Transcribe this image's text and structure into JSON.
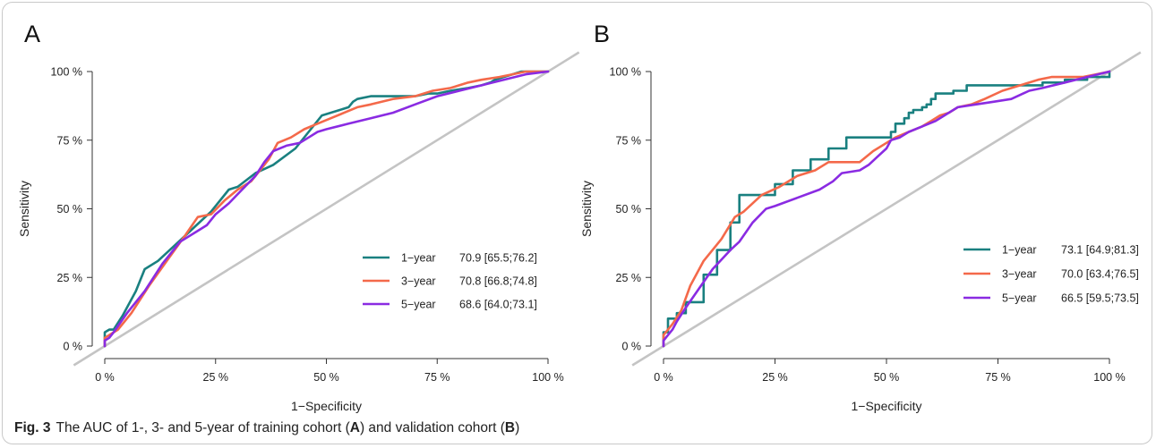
{
  "caption": {
    "label": "Fig. 3",
    "text_1": "The AUC of 1-, 3- and 5-year of training cohort (",
    "bold_a": "A",
    "text_2": ") and validation cohort (",
    "bold_b": "B",
    "text_3": ")"
  },
  "colors": {
    "1-year": "#1a8080",
    "3-year": "#f4694a",
    "5-year": "#8a2be2",
    "diagonal": "#c4c4c4"
  },
  "chart_data": [
    {
      "panel": "A",
      "type": "line",
      "xlabel": "1−Specificity",
      "ylabel": "Sensitivity",
      "xlim": [
        0,
        100
      ],
      "ylim": [
        0,
        100
      ],
      "xticks": [
        "0 %",
        "25 %",
        "50 %",
        "75 %",
        "100 %"
      ],
      "yticks": [
        "0 %",
        "25 %",
        "50 %",
        "75 %",
        "100 %"
      ],
      "legend_position": "bottom-right",
      "grid": false,
      "series": [
        {
          "name": "1−year",
          "key": "1-year",
          "auc": "70.9 [65.5;76.2]",
          "x": [
            0,
            0,
            1,
            2,
            4,
            7,
            9,
            12,
            16,
            20,
            24,
            28,
            30,
            34,
            38,
            43,
            46,
            49,
            53,
            55,
            56,
            57,
            60,
            64,
            68,
            70,
            73,
            75,
            78,
            82,
            85,
            87,
            88,
            90,
            92,
            94,
            96,
            100
          ],
          "y": [
            0,
            5,
            6,
            6,
            11,
            20,
            28,
            31,
            37,
            43,
            49,
            57,
            58,
            63,
            66,
            72,
            78,
            84,
            86,
            87,
            89,
            90,
            91,
            91,
            91,
            91,
            92,
            92,
            93,
            94,
            95,
            96,
            97,
            98,
            99,
            100,
            100,
            100
          ]
        },
        {
          "name": "3−year",
          "key": "3-year",
          "auc": "70.8 [66.8;74.8]",
          "x": [
            0,
            0,
            1,
            3,
            6,
            10,
            14,
            18,
            21,
            24,
            27,
            30,
            33,
            35,
            37,
            39,
            42,
            45,
            48,
            51,
            54,
            57,
            60,
            65,
            70,
            74,
            78,
            82,
            85,
            89,
            92,
            95,
            100
          ],
          "y": [
            0,
            3,
            4,
            6,
            12,
            22,
            31,
            40,
            47,
            48,
            53,
            57,
            60,
            64,
            68,
            74,
            76,
            79,
            81,
            83,
            85,
            87,
            88,
            90,
            91,
            93,
            94,
            96,
            97,
            98,
            99,
            100,
            100
          ]
        },
        {
          "name": "5−year",
          "key": "5-year",
          "auc": "68.6 [64.0;73.1]",
          "x": [
            0,
            0,
            1,
            2,
            5,
            9,
            13,
            17,
            21,
            23,
            25,
            28,
            31,
            34,
            36,
            38,
            41,
            44,
            46,
            48,
            50,
            55,
            60,
            65,
            70,
            75,
            80,
            85,
            90,
            95,
            100
          ],
          "y": [
            0,
            2,
            3,
            5,
            12,
            20,
            30,
            38,
            42,
            44,
            48,
            52,
            57,
            62,
            67,
            71,
            73,
            74,
            76,
            78,
            79,
            81,
            83,
            85,
            88,
            91,
            93,
            95,
            97,
            99,
            100
          ]
        }
      ]
    },
    {
      "panel": "B",
      "type": "line",
      "xlabel": "1−Specificity",
      "ylabel": "Sensitivity",
      "xlim": [
        0,
        100
      ],
      "ylim": [
        0,
        100
      ],
      "xticks": [
        "0 %",
        "25 %",
        "50 %",
        "75 %",
        "100 %"
      ],
      "yticks": [
        "0 %",
        "25 %",
        "50 %",
        "75 %",
        "100 %"
      ],
      "legend_position": "bottom-right",
      "grid": false,
      "series": [
        {
          "name": "1−year",
          "key": "1-year",
          "auc": "73.1 [64.9;81.3]",
          "x": [
            0,
            0,
            1,
            1,
            3,
            3,
            5,
            9,
            12,
            15,
            17,
            18,
            21,
            25,
            29,
            33,
            37,
            41,
            45,
            48,
            50,
            51,
            52,
            54,
            55,
            56,
            57,
            58,
            59,
            60,
            61,
            62,
            65,
            68,
            70,
            73,
            75,
            80,
            85,
            90,
            95,
            100
          ],
          "y": [
            0,
            5,
            5,
            10,
            10,
            12,
            16,
            26,
            35,
            45,
            55,
            55,
            55,
            59,
            64,
            68,
            72,
            76,
            76,
            76,
            76,
            78,
            81,
            83,
            85,
            86,
            86,
            87,
            88,
            90,
            92,
            92,
            93,
            95,
            95,
            95,
            95,
            95,
            96,
            97,
            98,
            100
          ],
          "step": true
        },
        {
          "name": "3−year",
          "key": "3-year",
          "auc": "70.0 [63.4;76.5]",
          "x": [
            0,
            0,
            1,
            2,
            4,
            6,
            9,
            13,
            16,
            18,
            22,
            26,
            30,
            34,
            37,
            41,
            44,
            47,
            50,
            52,
            55,
            58,
            60,
            62,
            64,
            66,
            69,
            72,
            76,
            80,
            84,
            87,
            90,
            94,
            97,
            100
          ],
          "y": [
            0,
            4,
            6,
            8,
            13,
            22,
            31,
            39,
            47,
            49,
            55,
            58,
            62,
            64,
            67,
            67,
            67,
            71,
            74,
            76,
            78,
            80,
            82,
            84,
            85,
            87,
            88,
            90,
            93,
            95,
            97,
            98,
            98,
            98,
            99,
            100
          ]
        },
        {
          "name": "5−year",
          "key": "5-year",
          "auc": "66.5 [59.5;73.5]",
          "x": [
            0,
            0,
            1,
            2,
            3,
            5,
            8,
            11,
            15,
            17,
            20,
            23,
            25,
            30,
            35,
            38,
            40,
            44,
            46,
            48,
            50,
            51,
            53,
            55,
            58,
            61,
            63,
            66,
            70,
            74,
            78,
            82,
            85,
            90,
            95,
            100
          ],
          "y": [
            0,
            2,
            4,
            6,
            9,
            14,
            21,
            28,
            35,
            38,
            45,
            50,
            51,
            54,
            57,
            60,
            63,
            64,
            66,
            69,
            72,
            75,
            76,
            78,
            80,
            82,
            84,
            87,
            88,
            89,
            90,
            93,
            94,
            96,
            98,
            100
          ]
        }
      ]
    }
  ],
  "panels": {
    "A": "A",
    "B": "B"
  }
}
